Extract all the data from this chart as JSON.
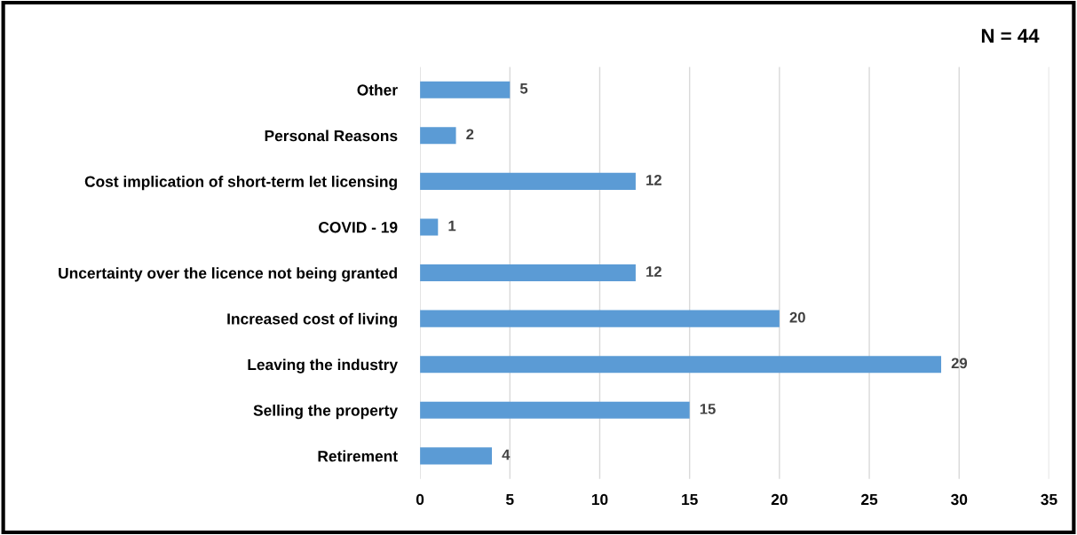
{
  "chart_data": {
    "type": "bar",
    "orientation": "horizontal",
    "categories": [
      "Other",
      "Personal Reasons",
      "Cost implication of short-term let licensing",
      "COVID - 19",
      "Uncertainty over the licence not being granted",
      "Increased cost of living",
      "Leaving the industry",
      "Selling the property",
      "Retirement"
    ],
    "values": [
      5,
      2,
      12,
      1,
      12,
      20,
      29,
      15,
      4
    ],
    "color": "#5b9bd5",
    "xlim": [
      0,
      35
    ],
    "xticks": [
      0,
      5,
      10,
      15,
      20,
      25,
      30,
      35
    ],
    "grid": "x",
    "data_labels": true,
    "legend": false,
    "annotations": [
      "N = 44"
    ]
  }
}
